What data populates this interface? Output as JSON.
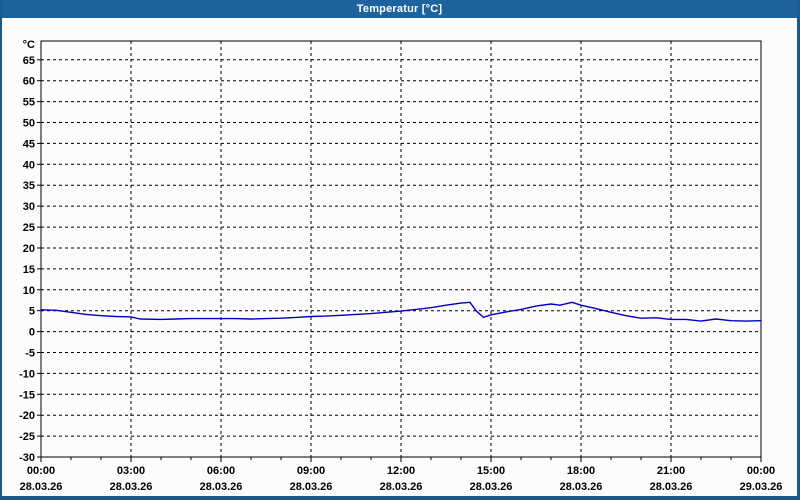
{
  "window": {
    "title": "Temperatur [°C]",
    "colors": {
      "border": "#1b5a8f",
      "titlebar": "#1d639e",
      "title_text": "#ffffff",
      "background": "#fcfcfc",
      "axis": "#000000"
    }
  },
  "chart_data": {
    "type": "line",
    "title": "Temperatur [°C]",
    "ylabel": "°C",
    "ylim": [
      -30,
      69.5
    ],
    "grid": "dashed",
    "legend": "none",
    "y_ticks": [
      65,
      60,
      55,
      50,
      45,
      40,
      35,
      30,
      25,
      20,
      15,
      10,
      5,
      0,
      -5,
      -10,
      -15,
      -20,
      -25,
      -30
    ],
    "x_axis": {
      "range_hours": [
        0,
        24
      ],
      "minor_tick_every_hours": 1,
      "major_ticks": [
        {
          "hour": 0,
          "time": "00:00",
          "date": "28.03.26"
        },
        {
          "hour": 3,
          "time": "03:00",
          "date": "28.03.26"
        },
        {
          "hour": 6,
          "time": "06:00",
          "date": "28.03.26"
        },
        {
          "hour": 9,
          "time": "09:00",
          "date": "28.03.26"
        },
        {
          "hour": 12,
          "time": "12:00",
          "date": "28.03.26"
        },
        {
          "hour": 15,
          "time": "15:00",
          "date": "28.03.26"
        },
        {
          "hour": 18,
          "time": "18:00",
          "date": "28.03.26"
        },
        {
          "hour": 21,
          "time": "21:00",
          "date": "28.03.26"
        },
        {
          "hour": 24,
          "time": "00:00",
          "date": "29.03.26"
        }
      ]
    },
    "series": [
      {
        "name": "Temperatur",
        "color": "#0000bf",
        "x_hours": [
          0,
          0.5,
          1,
          1.5,
          2,
          2.5,
          3,
          3.3,
          4,
          4.5,
          5,
          5.5,
          6,
          6.5,
          7,
          7.5,
          8,
          8.5,
          9,
          9.5,
          10,
          10.5,
          11,
          11.5,
          12,
          12.5,
          13,
          13.5,
          14,
          14.3,
          14.5,
          14.75,
          15,
          15.5,
          16,
          16.5,
          17,
          17.3,
          17.7,
          18,
          18.5,
          19,
          19.5,
          20,
          20.5,
          21,
          21.5,
          22,
          22.5,
          23,
          23.5,
          24
        ],
        "values": [
          5.2,
          5.1,
          4.6,
          4.1,
          3.8,
          3.6,
          3.5,
          3.0,
          2.9,
          3.0,
          3.1,
          3.1,
          3.1,
          3.1,
          3.0,
          3.1,
          3.2,
          3.4,
          3.6,
          3.7,
          3.9,
          4.1,
          4.3,
          4.6,
          4.9,
          5.3,
          5.7,
          6.3,
          6.8,
          7.0,
          5.0,
          3.4,
          4.0,
          4.7,
          5.3,
          6.1,
          6.6,
          6.3,
          7.0,
          6.3,
          5.5,
          4.6,
          3.8,
          3.2,
          3.3,
          2.9,
          2.9,
          2.5,
          3.0,
          2.6,
          2.5,
          2.6
        ]
      }
    ]
  }
}
